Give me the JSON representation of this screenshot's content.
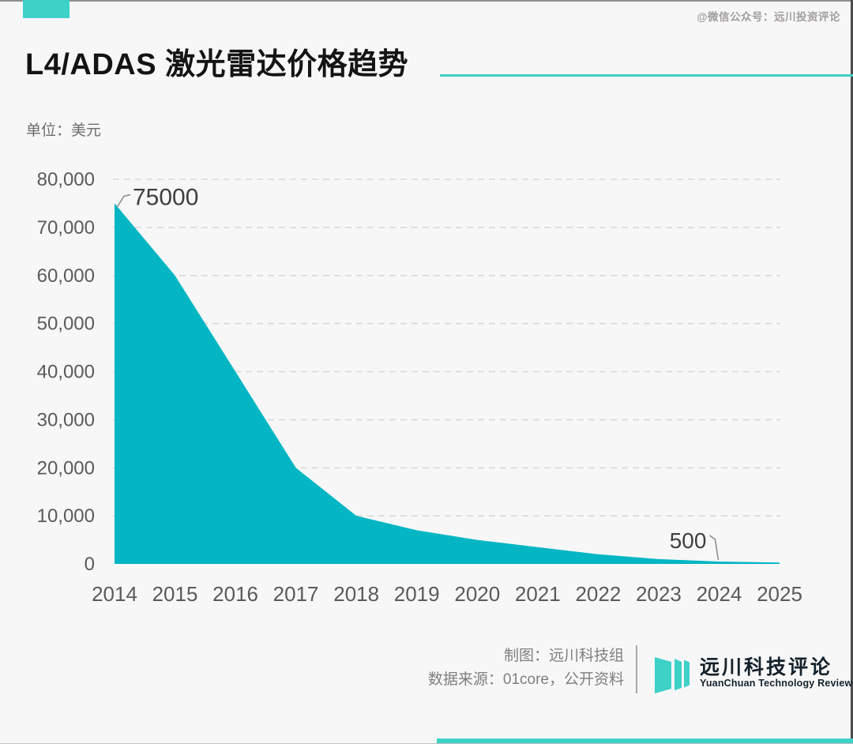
{
  "page": {
    "watermark": "@微信公众号：远川投资评论",
    "background": "#f7f7f8"
  },
  "header": {
    "title": "L4/ADAS 激光雷达价格趋势",
    "unit_label": "单位：美元"
  },
  "chart_data": {
    "type": "area",
    "title": "L4/ADAS 激光雷达价格趋势",
    "unit": "美元",
    "x": [
      2014,
      2015,
      2016,
      2017,
      2018,
      2019,
      2020,
      2021,
      2022,
      2023,
      2024,
      2025
    ],
    "values": [
      75000,
      60000,
      40000,
      20000,
      10000,
      7000,
      5000,
      3500,
      2000,
      1000,
      500,
      300
    ],
    "ylim": [
      0,
      80000
    ],
    "ytick_step": 10000,
    "ytick_labels": [
      "0",
      "10,000",
      "20,000",
      "30,000",
      "40,000",
      "50,000",
      "60,000",
      "70,000",
      "80,000"
    ],
    "grid": "horizontal-dashed",
    "legend_position": "none",
    "annotations": [
      {
        "x": 2014,
        "value": 75000,
        "label": "75000",
        "placement": "right-of-peak"
      },
      {
        "x": 2024,
        "value": 500,
        "label": "500",
        "placement": "left-above"
      }
    ]
  },
  "footer": {
    "credit": "制图：远川科技组",
    "source": "数据来源：01core，公开资料",
    "logo_cn": "远川科技评论",
    "logo_en": "YuanChuan Technology Review"
  },
  "colors": {
    "accent": "#3ed1c8",
    "area": "#04b6c3",
    "grid": "#d8d8d8",
    "axis_text": "#5a5a5a",
    "annotation_text": "#3f3f3f",
    "connector": "#8f8f8f",
    "footer_text": "#7f7f7f",
    "watermark_text": "#a29d9d",
    "logo_text": "#15222b"
  }
}
